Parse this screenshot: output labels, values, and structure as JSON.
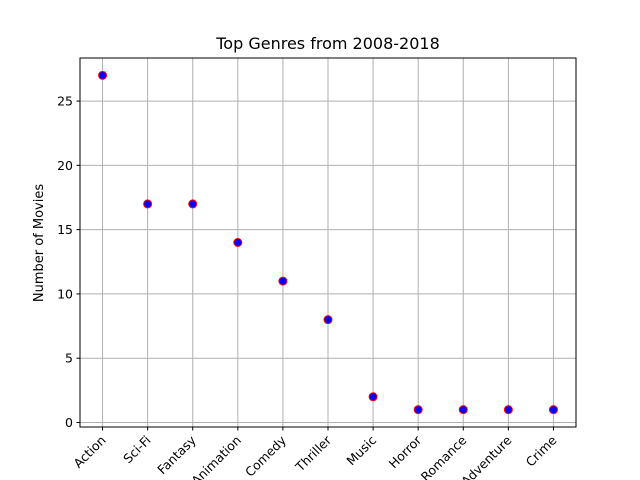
{
  "chart_data": {
    "type": "scatter",
    "title": "Top Genres from 2008-2018",
    "xlabel": "",
    "ylabel": "Number of Movies",
    "categories": [
      "Action",
      "Sci-Fi",
      "Fantasy",
      "Animation",
      "Comedy",
      "Thriller",
      "Music",
      "Horror",
      "Romance",
      "Adventure",
      "Crime"
    ],
    "values": [
      27,
      17,
      17,
      14,
      11,
      8,
      2,
      1,
      1,
      1,
      1
    ],
    "ylim": [
      -0.35,
      28.35
    ],
    "yticks": [
      0,
      5,
      10,
      15,
      20,
      25
    ],
    "grid": true,
    "marker_face_color": "#0000ff",
    "marker_edge_color": "#ff0000",
    "grid_color": "#b0b0b0"
  }
}
